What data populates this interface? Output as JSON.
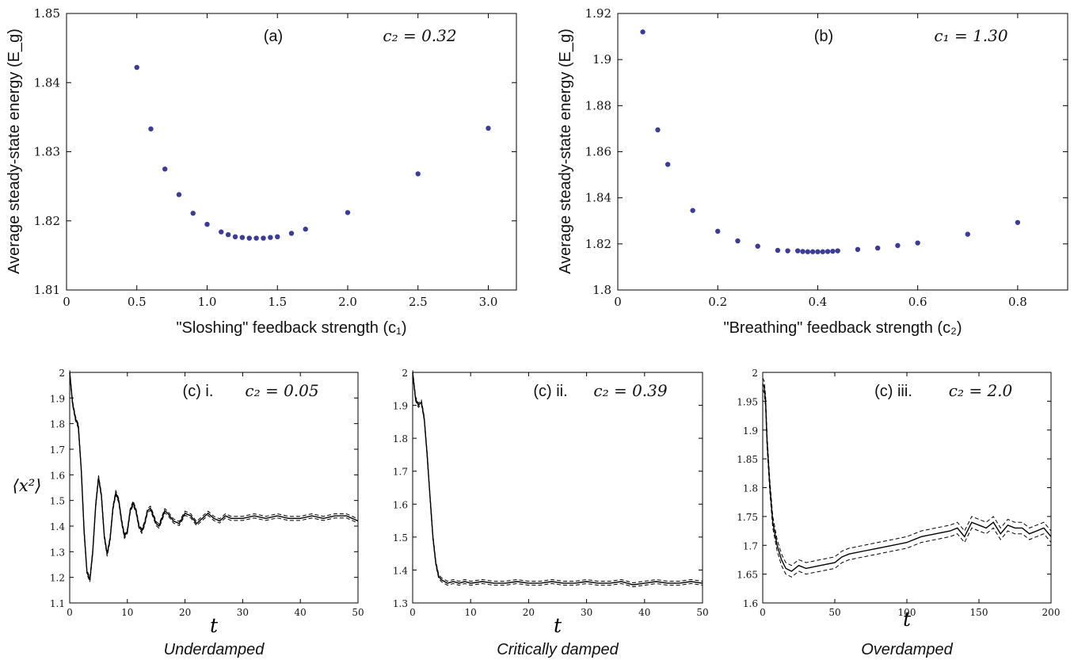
{
  "chart_data": [
    {
      "type": "scatter",
      "panel": "(a)",
      "annotation": "c₂ = 0.32",
      "xlabel": "\"Sloshing\" feedback strength (c₁)",
      "ylabel": "Average steady-state energy (E_g)",
      "xlim": [
        0,
        3.2
      ],
      "ylim": [
        1.81,
        1.85
      ],
      "xticks": [
        0,
        0.5,
        1.0,
        1.5,
        2.0,
        2.5,
        3.0
      ],
      "xtick_labels": [
        "0",
        "0.5",
        "1.0",
        "1.5",
        "2.0",
        "2.5",
        "3.0"
      ],
      "yticks": [
        1.81,
        1.82,
        1.83,
        1.84,
        1.85
      ],
      "ytick_labels": [
        "1.81",
        "1.82",
        "1.83",
        "1.84",
        "1.85"
      ],
      "marker_color": "#3b3b98",
      "x": [
        0.5,
        0.6,
        0.7,
        0.8,
        0.9,
        1.0,
        1.1,
        1.15,
        1.2,
        1.25,
        1.3,
        1.35,
        1.4,
        1.45,
        1.5,
        1.6,
        1.7,
        2.0,
        2.5,
        3.0
      ],
      "y": [
        1.8422,
        1.8333,
        1.8275,
        1.8238,
        1.8211,
        1.8195,
        1.8184,
        1.818,
        1.8177,
        1.8176,
        1.8175,
        1.8175,
        1.8175,
        1.8176,
        1.8177,
        1.8182,
        1.8188,
        1.8212,
        1.8268,
        1.8334
      ]
    },
    {
      "type": "scatter",
      "panel": "(b)",
      "annotation": "c₁ = 1.30",
      "xlabel": "\"Breathing\" feedback strength (c₂)",
      "ylabel": "Average steady-state energy (E_g)",
      "xlim": [
        0,
        0.9
      ],
      "ylim": [
        1.8,
        1.92
      ],
      "xticks": [
        0,
        0.2,
        0.4,
        0.6,
        0.8
      ],
      "xtick_labels": [
        "0",
        "0.2",
        "0.4",
        "0.6",
        "0.8"
      ],
      "yticks": [
        1.8,
        1.82,
        1.84,
        1.86,
        1.88,
        1.9,
        1.92
      ],
      "ytick_labels": [
        "1.8",
        "1.82",
        "1.84",
        "1.86",
        "1.88",
        "1.9",
        "1.92"
      ],
      "marker_color": "#3b3b98",
      "x": [
        0.05,
        0.08,
        0.1,
        0.15,
        0.2,
        0.24,
        0.28,
        0.32,
        0.34,
        0.36,
        0.37,
        0.38,
        0.39,
        0.4,
        0.41,
        0.42,
        0.43,
        0.44,
        0.48,
        0.52,
        0.56,
        0.6,
        0.7,
        0.8
      ],
      "y": [
        1.912,
        1.8695,
        1.8545,
        1.8345,
        1.8255,
        1.8213,
        1.819,
        1.8172,
        1.817,
        1.817,
        1.8167,
        1.8166,
        1.8166,
        1.8166,
        1.8166,
        1.8167,
        1.8168,
        1.817,
        1.8176,
        1.8182,
        1.8193,
        1.8204,
        1.8242,
        1.8293
      ]
    },
    {
      "type": "line",
      "panel": "(c) i.",
      "annotation": "c₂ = 0.05",
      "regime": "Underdamped",
      "xlabel": "t",
      "ylabel": "⟨x²⟩",
      "xlim": [
        0,
        50
      ],
      "ylim": [
        1.1,
        2.0
      ],
      "xticks": [
        0,
        10,
        20,
        30,
        40,
        50
      ],
      "xtick_labels": [
        "0",
        "10",
        "20",
        "30",
        "40",
        "50"
      ],
      "yticks": [
        1.1,
        1.2,
        1.3,
        1.4,
        1.5,
        1.6,
        1.7,
        1.8,
        1.9,
        2.0
      ],
      "ytick_labels": [
        "1.1",
        "1.2",
        "1.3",
        "1.4",
        "1.5",
        "1.6",
        "1.7",
        "1.8",
        "1.9",
        "2"
      ],
      "band": 0.008,
      "x": [
        0,
        0.5,
        1,
        1.5,
        2,
        2.5,
        3,
        3.5,
        4,
        4.5,
        5,
        5.5,
        6,
        6.5,
        7,
        7.5,
        8,
        8.5,
        9,
        9.5,
        10,
        10.5,
        11,
        11.5,
        12,
        12.5,
        13,
        13.5,
        14,
        14.5,
        15,
        15.5,
        16,
        16.5,
        17,
        18,
        19,
        20,
        21,
        22,
        23,
        24,
        25,
        26,
        27,
        28,
        30,
        32,
        34,
        36,
        38,
        40,
        42,
        44,
        46,
        48,
        50
      ],
      "y": [
        2.0,
        1.88,
        1.82,
        1.79,
        1.62,
        1.38,
        1.22,
        1.19,
        1.3,
        1.48,
        1.59,
        1.52,
        1.36,
        1.29,
        1.35,
        1.47,
        1.53,
        1.5,
        1.42,
        1.36,
        1.38,
        1.46,
        1.49,
        1.46,
        1.4,
        1.38,
        1.41,
        1.46,
        1.47,
        1.44,
        1.41,
        1.4,
        1.43,
        1.46,
        1.45,
        1.42,
        1.41,
        1.45,
        1.44,
        1.41,
        1.43,
        1.45,
        1.43,
        1.42,
        1.44,
        1.43,
        1.43,
        1.44,
        1.43,
        1.44,
        1.43,
        1.43,
        1.44,
        1.43,
        1.44,
        1.44,
        1.42
      ]
    },
    {
      "type": "line",
      "panel": "(c) ii.",
      "annotation": "c₂ = 0.39",
      "regime": "Critically damped",
      "xlabel": "t",
      "ylabel": "",
      "xlim": [
        0,
        50
      ],
      "ylim": [
        1.3,
        2.0
      ],
      "xticks": [
        0,
        10,
        20,
        30,
        40,
        50
      ],
      "xtick_labels": [
        "0",
        "10",
        "20",
        "30",
        "40",
        "50"
      ],
      "yticks": [
        1.3,
        1.4,
        1.5,
        1.6,
        1.7,
        1.8,
        1.9,
        2.0
      ],
      "ytick_labels": [
        "1.3",
        "1.4",
        "1.5",
        "1.6",
        "1.7",
        "1.8",
        "1.9",
        "2"
      ],
      "band": 0.006,
      "x": [
        0,
        0.5,
        1,
        1.5,
        2,
        2.5,
        3,
        3.5,
        4,
        4.5,
        5,
        5.5,
        6,
        7,
        8,
        9,
        10,
        12,
        14,
        16,
        18,
        20,
        22,
        24,
        26,
        28,
        30,
        32,
        34,
        36,
        38,
        40,
        42,
        44,
        46,
        48,
        50
      ],
      "y": [
        2.0,
        1.92,
        1.9,
        1.91,
        1.86,
        1.75,
        1.62,
        1.5,
        1.42,
        1.38,
        1.37,
        1.365,
        1.36,
        1.365,
        1.36,
        1.365,
        1.36,
        1.365,
        1.36,
        1.36,
        1.365,
        1.36,
        1.36,
        1.365,
        1.36,
        1.36,
        1.365,
        1.36,
        1.36,
        1.365,
        1.355,
        1.36,
        1.365,
        1.36,
        1.36,
        1.365,
        1.36
      ]
    },
    {
      "type": "line",
      "panel": "(c) iii.",
      "annotation": "c₂ = 2.0",
      "regime": "Overdamped",
      "xlabel": "t",
      "ylabel": "",
      "xlim": [
        0,
        200
      ],
      "ylim": [
        1.6,
        2.0
      ],
      "xticks": [
        0,
        50,
        100,
        150,
        200
      ],
      "xtick_labels": [
        "0",
        "50",
        "100",
        "150",
        "200"
      ],
      "yticks": [
        1.6,
        1.65,
        1.7,
        1.75,
        1.8,
        1.85,
        1.9,
        1.95,
        2.0
      ],
      "ytick_labels": [
        "1.6",
        "1.65",
        "1.7",
        "1.75",
        "1.8",
        "1.85",
        "1.9",
        "1.95",
        "2"
      ],
      "band": 0.01,
      "x": [
        0,
        1,
        2,
        3,
        5,
        7,
        10,
        13,
        16,
        20,
        25,
        30,
        40,
        50,
        55,
        60,
        70,
        80,
        90,
        100,
        110,
        120,
        130,
        135,
        140,
        145,
        150,
        155,
        160,
        165,
        170,
        175,
        180,
        185,
        190,
        195,
        200
      ],
      "y": [
        1.98,
        1.975,
        1.95,
        1.88,
        1.8,
        1.74,
        1.7,
        1.675,
        1.66,
        1.655,
        1.665,
        1.66,
        1.665,
        1.67,
        1.68,
        1.685,
        1.69,
        1.695,
        1.7,
        1.705,
        1.715,
        1.72,
        1.725,
        1.73,
        1.715,
        1.74,
        1.735,
        1.73,
        1.74,
        1.72,
        1.735,
        1.73,
        1.73,
        1.72,
        1.725,
        1.73,
        1.715
      ]
    }
  ]
}
